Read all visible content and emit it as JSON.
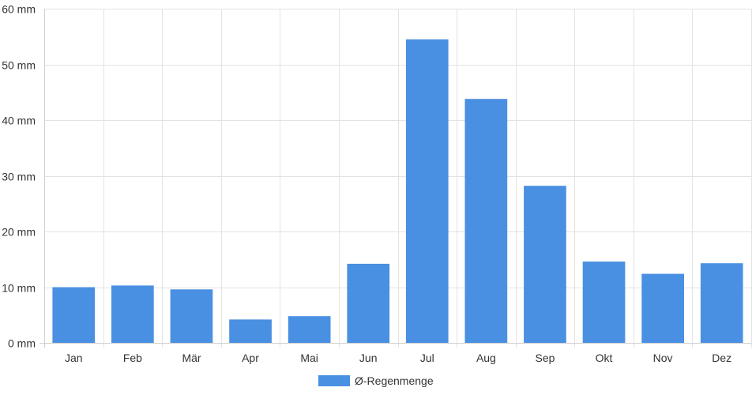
{
  "chart_data": {
    "type": "bar",
    "categories": [
      "Jan",
      "Feb",
      "Mär",
      "Apr",
      "Mai",
      "Jun",
      "Jul",
      "Aug",
      "Sep",
      "Okt",
      "Nov",
      "Dez"
    ],
    "series": [
      {
        "name": "Ø-Regenmenge",
        "values": [
          10,
          10.3,
          9.6,
          4.2,
          4.8,
          14.2,
          54.5,
          43.8,
          28.2,
          14.6,
          12.4,
          14.3
        ],
        "color": "#4a90e2"
      }
    ],
    "y_ticks": [
      "0 mm",
      "10 mm",
      "20 mm",
      "30 mm",
      "40 mm",
      "50 mm",
      "60 mm"
    ],
    "ylim": [
      0,
      60
    ],
    "title": "",
    "xlabel": "",
    "ylabel": "",
    "grid": true,
    "legend_position": "bottom-center"
  }
}
